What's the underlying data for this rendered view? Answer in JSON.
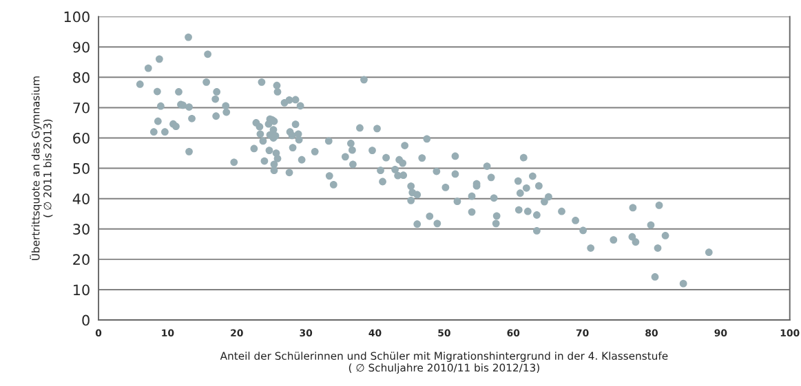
{
  "chart_data": {
    "type": "scatter",
    "xlabel": "Anteil der Schülerinnen und Schüler mit Migrationshintergrund in der 4. Klassenstufe\n( ∅ Schuljahre 2010/11 bis 2012/13)",
    "ylabel": "Übertrittsquote an das Gymnasium\n( ∅ 2011 bis 2013)",
    "xlim": [
      0,
      100
    ],
    "xticks": [
      0,
      10,
      20,
      30,
      40,
      50,
      60,
      70,
      80,
      90,
      100
    ],
    "ylim": [
      0,
      100
    ],
    "yticks": [
      0,
      10,
      20,
      30,
      40,
      50,
      60,
      70,
      80,
      90,
      100
    ],
    "grid": "y",
    "marker": "circle",
    "legend": false,
    "series": [
      {
        "color": "#97adb4",
        "x": [
          6,
          7.2,
          8.8,
          8,
          8.5,
          8.6,
          9,
          9.6,
          10.8,
          11.2,
          11.6,
          11.9,
          12.2,
          13,
          13.1,
          13.1,
          13.5,
          15.6,
          15.8,
          16.9,
          17,
          17.1,
          18.4,
          18.5,
          19.6,
          22.5,
          22.8,
          23.3,
          23.6,
          23.4,
          23.8,
          24,
          24.7,
          24.6,
          24.8,
          24.8,
          25.1,
          25.4,
          25.3,
          25.3,
          25.6,
          25.4,
          25.4,
          25.7,
          25.9,
          25.8,
          25.9,
          26.9,
          27.6,
          27.6,
          27.7,
          28.1,
          28,
          28.5,
          28.5,
          28.9,
          29,
          29.2,
          29.4,
          31.3,
          33.3,
          33.4,
          34,
          35.7,
          36.5,
          36.7,
          36.8,
          37.8,
          38.4,
          39.6,
          40.3,
          40.8,
          41.1,
          41.6,
          42.9,
          43.3,
          43.5,
          44,
          44.1,
          44.3,
          45.2,
          45.2,
          45.4,
          46.1,
          46.1,
          46.8,
          47.5,
          47.9,
          48.9,
          49,
          50.2,
          51.6,
          51.6,
          51.9,
          54,
          54,
          54.7,
          54.7,
          56.2,
          56.8,
          57.2,
          57.5,
          57.6,
          60.7,
          60.8,
          61,
          61.5,
          61.9,
          62.1,
          62.8,
          63.4,
          63.4,
          63.7,
          64.5,
          65.1,
          67,
          69,
          70.1,
          71.2,
          74.5,
          77.2,
          77.3,
          77.7,
          79.9,
          80.5,
          80.9,
          81.1,
          82,
          84.6,
          88.3
        ],
        "values": [
          77.7,
          83,
          86,
          62,
          75.3,
          65.5,
          70.5,
          62,
          64.6,
          63.8,
          75.2,
          71,
          70.8,
          93.2,
          70.2,
          55.5,
          66.4,
          78.4,
          87.6,
          72.8,
          67.2,
          75.2,
          70.6,
          68.5,
          52,
          56.5,
          65,
          63.7,
          78.4,
          61.3,
          59,
          52.4,
          55.9,
          64.6,
          61,
          66.2,
          66,
          65.5,
          62.7,
          60,
          60.7,
          51.3,
          49.3,
          55,
          53.2,
          77.3,
          75.2,
          71.6,
          72.5,
          48.6,
          62,
          56.8,
          60.8,
          64.5,
          72.6,
          61.3,
          59.4,
          70.6,
          52.8,
          55.5,
          59,
          47.5,
          44.6,
          53.8,
          58.2,
          56,
          51.3,
          63.3,
          79.2,
          55.9,
          63.1,
          49.3,
          45.6,
          53.5,
          49.6,
          47.6,
          52.8,
          51.7,
          47.7,
          57.5,
          39.4,
          44.1,
          42,
          31.6,
          41.3,
          53.4,
          59.7,
          34.2,
          49,
          31.8,
          43.7,
          54,
          48.1,
          39.1,
          40.8,
          35.6,
          44.2,
          44.9,
          50.7,
          47,
          40.2,
          31.8,
          34.3,
          45.8,
          36.3,
          41.8,
          53.5,
          43.5,
          35.8,
          47.4,
          34.6,
          29.4,
          44.2,
          39,
          40.6,
          35.8,
          32.8,
          29.5,
          23.7,
          26.4,
          27.4,
          37,
          25.7,
          31.3,
          14.2,
          23.7,
          37.8,
          27.8,
          12,
          22.3
        ]
      }
    ]
  }
}
